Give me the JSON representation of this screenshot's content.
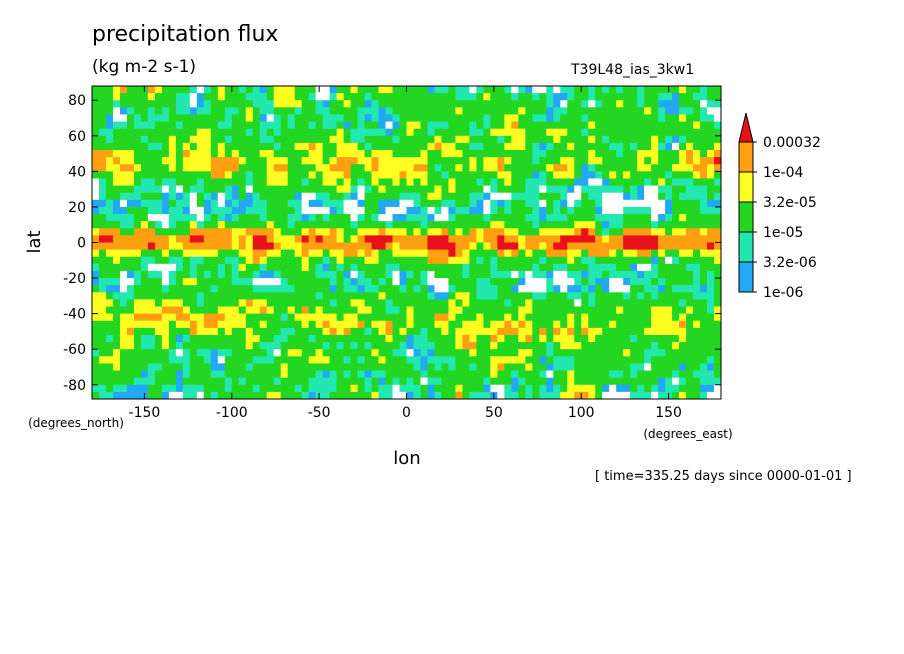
{
  "chart_data": {
    "type": "heatmap",
    "title": "precipitation flux",
    "units": "(kg m-2 s-1)",
    "run_label": "T39L48_ias_3kw1",
    "xlabel": "lon",
    "ylabel": "lat",
    "xunits": "(degrees_east)",
    "yunits": "(degrees_north)",
    "xlim": [
      -180,
      180
    ],
    "ylim": [
      -88,
      88
    ],
    "x_ticks": [
      -150,
      -100,
      -50,
      0,
      50,
      100,
      150
    ],
    "x_tick_labels": [
      "-150",
      "-100",
      "-50",
      "0",
      "50",
      "100",
      "150"
    ],
    "y_ticks": [
      80,
      60,
      40,
      20,
      0,
      -20,
      -40,
      -60,
      -80
    ],
    "y_tick_labels": [
      "80",
      "60",
      "40",
      "20",
      "0",
      "-20",
      "-40",
      "-60",
      "-80"
    ],
    "colorbar": {
      "levels": [
        "0.00032",
        "1e-04",
        "3.2e-05",
        "1e-05",
        "3.2e-06",
        "1e-06"
      ],
      "colors": [
        "#e8101a",
        "#ff9f12",
        "#ffff22",
        "#22d622",
        "#22e8b0",
        "#22a8f4",
        "#ffffff"
      ]
    },
    "grid": false,
    "legend_position": "right",
    "footer": "[ time=335.25 days since 0000-01-01 ]"
  }
}
